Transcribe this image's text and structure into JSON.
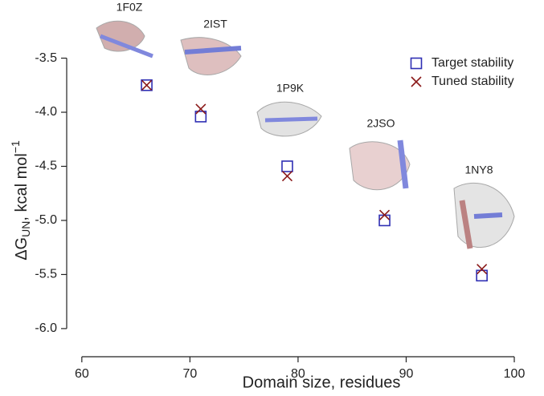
{
  "chart_data": {
    "type": "scatter",
    "xlabel": "Domain size, residues",
    "ylabel": {
      "main": "ΔG",
      "sub": "UN",
      "rest": ", kcal mol",
      "sup": "−1"
    },
    "xlim": [
      58.6,
      102.6
    ],
    "ylim": [
      -6.26,
      -3.37
    ],
    "xticks": [
      60,
      70,
      80,
      90,
      100
    ],
    "yticks": [
      -3.5,
      {
        "value": -4.0,
        "label": "-4.0"
      },
      -4.5,
      {
        "value": -5.0,
        "label": "-5.0"
      },
      -5.5,
      {
        "value": -6.0,
        "label": "-6.0"
      }
    ],
    "legend": "top-right",
    "series": [
      {
        "name": "Target stability",
        "color": "#2f2fb4",
        "marker": "square",
        "x": [
          66,
          71,
          79,
          88,
          97
        ],
        "values": [
          -3.75,
          -4.04,
          -4.5,
          -5.0,
          -5.51
        ]
      },
      {
        "name": "Tuned stability",
        "color": "#8b1a1a",
        "marker": "cross",
        "x": [
          66,
          71,
          79,
          88,
          97
        ],
        "values": [
          -3.75,
          -3.97,
          -4.59,
          -4.95,
          -5.45
        ]
      }
    ],
    "annotations": [
      "1F0Z",
      "2IST",
      "1P9K",
      "2JSO",
      "1NY8"
    ]
  }
}
